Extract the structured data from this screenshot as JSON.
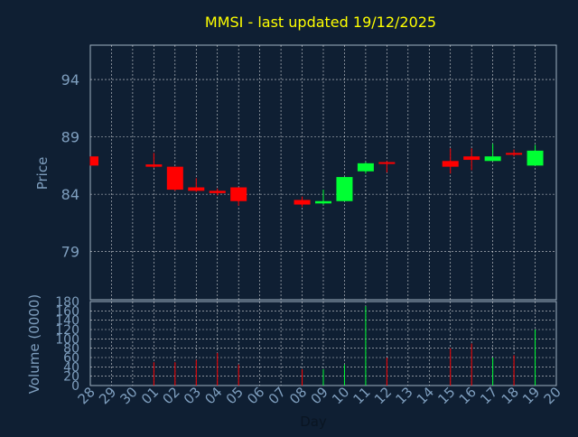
{
  "colors": {
    "background": "#0f1f33",
    "axis_text": "#7f9fbf",
    "title": "#ffff00",
    "grid": "#ffffff",
    "up": "#00ff33",
    "down": "#ff0000",
    "frame": "#9fb0c0"
  },
  "chart_data": {
    "type": "candlestick",
    "title": "MMSI - last updated 19/12/2025",
    "price_panel": {
      "ylabel": "Price",
      "ylim": [
        74.8,
        97.0
      ],
      "yticks": [
        79,
        84,
        89,
        94
      ],
      "grid": true
    },
    "volume_panel": {
      "ylabel": "Volume (0000)",
      "ylim": [
        0,
        180
      ],
      "yticks": [
        0,
        20,
        40,
        60,
        80,
        100,
        120,
        140,
        160,
        180
      ],
      "grid": true
    },
    "xlabel": "Day",
    "x_tick_labels": [
      "28",
      "29",
      "30",
      "01",
      "02",
      "03",
      "04",
      "05",
      "06",
      "07",
      "08",
      "09",
      "10",
      "11",
      "12",
      "13",
      "14",
      "15",
      "16",
      "17",
      "18",
      "19",
      "20"
    ],
    "candles": [
      {
        "i": 0,
        "open": 87.3,
        "high": 87.3,
        "low": 86.5,
        "close": 86.5,
        "volume": 0
      },
      {
        "i": 3,
        "open": 86.6,
        "high": 87.6,
        "low": 86.3,
        "close": 86.4,
        "volume": 50
      },
      {
        "i": 4,
        "open": 86.4,
        "high": 86.4,
        "low": 84.3,
        "close": 84.4,
        "volume": 50
      },
      {
        "i": 5,
        "open": 84.6,
        "high": 85.4,
        "low": 84.2,
        "close": 84.3,
        "volume": 55
      },
      {
        "i": 6,
        "open": 84.3,
        "high": 84.5,
        "low": 83.9,
        "close": 84.1,
        "volume": 70
      },
      {
        "i": 7,
        "open": 84.6,
        "high": 84.6,
        "low": 83.0,
        "close": 83.4,
        "volume": 45
      },
      {
        "i": 10,
        "open": 83.5,
        "high": 83.8,
        "low": 82.9,
        "close": 83.1,
        "volume": 35
      },
      {
        "i": 11,
        "open": 83.2,
        "high": 84.4,
        "low": 83.1,
        "close": 83.4,
        "volume": 35
      },
      {
        "i": 12,
        "open": 83.4,
        "high": 85.5,
        "low": 83.4,
        "close": 85.5,
        "volume": 45
      },
      {
        "i": 13,
        "open": 86.0,
        "high": 86.8,
        "low": 85.8,
        "close": 86.7,
        "volume": 170
      },
      {
        "i": 14,
        "open": 86.8,
        "high": 86.9,
        "low": 85.9,
        "close": 86.7,
        "volume": 60
      },
      {
        "i": 17,
        "open": 86.9,
        "high": 88.0,
        "low": 85.8,
        "close": 86.4,
        "volume": 80
      },
      {
        "i": 18,
        "open": 87.3,
        "high": 88.0,
        "low": 86.1,
        "close": 87.0,
        "volume": 90
      },
      {
        "i": 19,
        "open": 86.9,
        "high": 88.4,
        "low": 86.9,
        "close": 87.3,
        "volume": 60
      },
      {
        "i": 20,
        "open": 87.6,
        "high": 87.9,
        "low": 87.3,
        "close": 87.5,
        "volume": 65
      },
      {
        "i": 21,
        "open": 86.5,
        "high": 88.3,
        "low": 86.5,
        "close": 87.8,
        "volume": 120
      }
    ]
  }
}
